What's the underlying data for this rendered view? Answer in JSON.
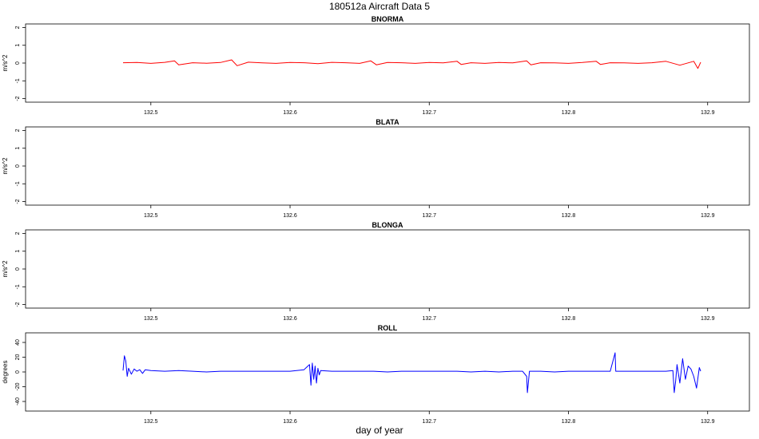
{
  "figure": {
    "title": "180512a   Aircraft Data 5",
    "xlabel": "day of year"
  },
  "chart_data": [
    {
      "type": "line",
      "title": "BNORMA",
      "ylabel": "m/s^2",
      "xlim": [
        132.41,
        132.93
      ],
      "ylim": [
        -2.2,
        2.2
      ],
      "xticks": [
        132.5,
        132.6,
        132.7,
        132.8,
        132.9
      ],
      "xtick_labels": [
        "132.5",
        "132.6",
        "132.7",
        "132.8",
        "132.9"
      ],
      "yticks": [
        -2,
        -1,
        0,
        1,
        2
      ],
      "ytick_labels": [
        "-2",
        "-1",
        "0",
        "1",
        "2"
      ],
      "color": "#ff0000",
      "series": [
        {
          "x": [
            132.48,
            132.49,
            132.5,
            132.51,
            132.517,
            132.52,
            132.53,
            132.54,
            132.55,
            132.558,
            132.562,
            132.57,
            132.58,
            132.59,
            132.6,
            132.61,
            132.62,
            132.63,
            132.64,
            132.65,
            132.658,
            132.662,
            132.67,
            132.68,
            132.69,
            132.7,
            132.71,
            132.72,
            132.723,
            132.73,
            132.74,
            132.75,
            132.76,
            132.77,
            132.773,
            132.78,
            132.79,
            132.8,
            132.81,
            132.82,
            132.823,
            132.83,
            132.84,
            132.85,
            132.86,
            132.87,
            132.88,
            132.89,
            132.893,
            132.895
          ],
          "y": [
            0.02,
            0.03,
            -0.02,
            0.04,
            0.12,
            -0.1,
            0.02,
            -0.01,
            0.03,
            0.18,
            -0.15,
            0.05,
            0.01,
            -0.02,
            0.03,
            0.02,
            -0.03,
            0.04,
            0.02,
            -0.02,
            0.12,
            -0.1,
            0.03,
            0.02,
            -0.02,
            0.03,
            0.01,
            0.1,
            -0.08,
            0.02,
            -0.02,
            0.03,
            0.01,
            0.12,
            -0.1,
            0.02,
            0.01,
            -0.02,
            0.03,
            0.1,
            -0.08,
            0.02,
            0.01,
            -0.02,
            0.02,
            0.1,
            -0.12,
            0.1,
            -0.3,
            0.05
          ]
        }
      ]
    },
    {
      "type": "line",
      "title": "BLATA",
      "ylabel": "m/s^2",
      "xlim": [
        132.41,
        132.93
      ],
      "ylim": [
        -2.2,
        2.2
      ],
      "xticks": [
        132.5,
        132.6,
        132.7,
        132.8,
        132.9
      ],
      "xtick_labels": [
        "132.5",
        "132.6",
        "132.7",
        "132.8",
        "132.9"
      ],
      "yticks": [
        -2,
        -1,
        0,
        1,
        2
      ],
      "ytick_labels": [
        "-2",
        "-1",
        "0",
        "1",
        "2"
      ],
      "series": []
    },
    {
      "type": "line",
      "title": "BLONGA",
      "ylabel": "m/s^2",
      "xlim": [
        132.41,
        132.93
      ],
      "ylim": [
        -2.2,
        2.2
      ],
      "xticks": [
        132.5,
        132.6,
        132.7,
        132.8,
        132.9
      ],
      "xtick_labels": [
        "132.5",
        "132.6",
        "132.7",
        "132.8",
        "132.9"
      ],
      "yticks": [
        -2,
        -1,
        0,
        1,
        2
      ],
      "ytick_labels": [
        "-2",
        "-1",
        "0",
        "1",
        "2"
      ],
      "series": []
    },
    {
      "type": "line",
      "title": "ROLL",
      "ylabel": "degrees",
      "xlim": [
        132.41,
        132.93
      ],
      "ylim": [
        -53,
        53
      ],
      "xticks": [
        132.5,
        132.6,
        132.7,
        132.8,
        132.9
      ],
      "xtick_labels": [
        "132.5",
        "132.6",
        "132.7",
        "132.8",
        "132.9"
      ],
      "yticks": [
        -40,
        -20,
        0,
        20,
        40
      ],
      "ytick_labels": [
        "-40",
        "-20",
        "0",
        "20",
        "40"
      ],
      "color": "#0000ff",
      "series": [
        {
          "x": [
            132.48,
            132.481,
            132.482,
            132.483,
            132.484,
            132.486,
            132.488,
            132.49,
            132.492,
            132.494,
            132.496,
            132.5,
            132.51,
            132.52,
            132.53,
            132.54,
            132.55,
            132.56,
            132.57,
            132.58,
            132.59,
            132.6,
            132.61,
            132.614,
            132.615,
            132.616,
            132.617,
            132.618,
            132.619,
            132.62,
            132.621,
            132.622,
            132.63,
            132.64,
            132.65,
            132.66,
            132.67,
            132.68,
            132.69,
            132.7,
            132.71,
            132.72,
            132.73,
            132.74,
            132.75,
            132.76,
            132.767,
            132.77,
            132.7705,
            132.772,
            132.78,
            132.79,
            132.8,
            132.81,
            132.82,
            132.83,
            132.8335,
            132.834,
            132.84,
            132.85,
            132.86,
            132.87,
            132.875,
            132.876,
            132.877,
            132.878,
            132.88,
            132.882,
            132.884,
            132.886,
            132.888,
            132.89,
            132.892,
            132.894,
            132.895
          ],
          "y": [
            2,
            22,
            15,
            -6,
            5,
            -3,
            4,
            1,
            3,
            -2,
            3,
            2,
            1,
            2,
            1,
            0,
            1,
            1,
            1,
            1,
            1,
            1,
            3,
            10,
            -18,
            12,
            -10,
            8,
            -15,
            5,
            -4,
            2,
            1,
            1,
            1,
            1,
            0,
            1,
            1,
            1,
            1,
            1,
            0,
            1,
            0,
            1,
            1,
            -6,
            -28,
            1,
            1,
            0,
            1,
            1,
            1,
            1,
            26,
            1,
            1,
            1,
            1,
            1,
            2,
            -28,
            -12,
            10,
            -15,
            18,
            -10,
            8,
            4,
            -6,
            -22,
            6,
            1
          ]
        }
      ]
    }
  ]
}
